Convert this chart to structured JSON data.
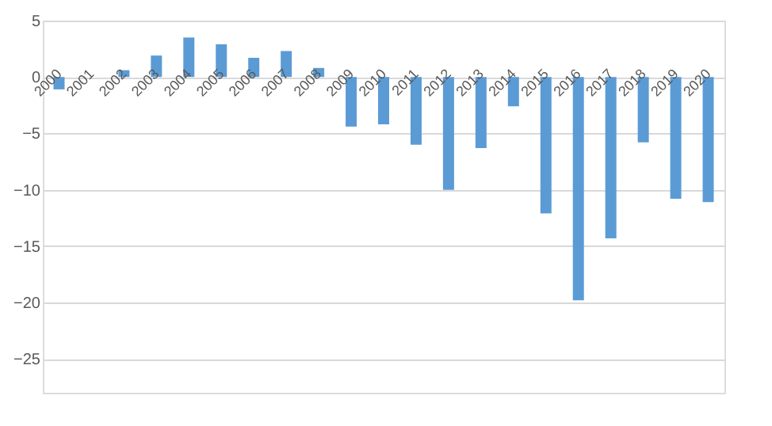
{
  "chart_data": {
    "type": "bar",
    "categories": [
      "2000",
      "2001",
      "2002",
      "2003",
      "2004",
      "2005",
      "2006",
      "2007",
      "2008",
      "2009",
      "2010",
      "2011",
      "2012",
      "2013",
      "2014",
      "2015",
      "2016",
      "2017",
      "2018",
      "2019",
      "2020"
    ],
    "values": [
      -1.1,
      0,
      0.6,
      1.9,
      3.5,
      2.9,
      1.7,
      2.3,
      0.8,
      -4.4,
      -4.2,
      -6.0,
      -10.0,
      -6.3,
      -2.6,
      -12.1,
      -19.8,
      -14.3,
      -5.8,
      -10.8,
      -11.1
    ],
    "color": "#5b9bd5",
    "ylim": [
      -28,
      5
    ],
    "yticks": [
      -25,
      -20,
      -15,
      -10,
      -5,
      0,
      5
    ],
    "grid": "y"
  }
}
